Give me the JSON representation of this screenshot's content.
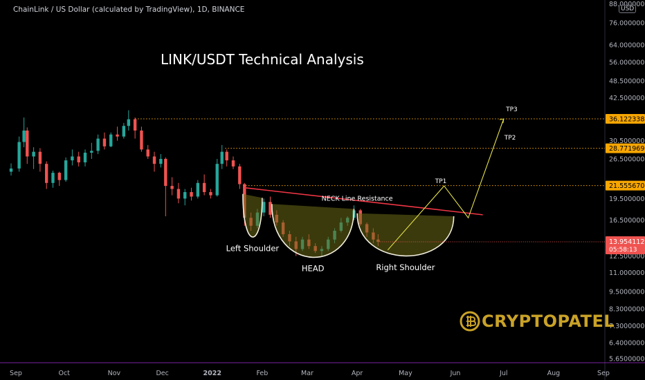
{
  "header": {
    "symbol_line": "ChainLink / US Dollar (calculated by TradingView), 1D, BINANCE",
    "currency_badge": "USD"
  },
  "title": "LINK/USDT Technical Analysis",
  "brand": {
    "name": "CRYPTOPATEL",
    "color": "#c9a227"
  },
  "colors": {
    "up": "#26a69a",
    "down": "#ef5350",
    "neckline": "#f23645",
    "target": "#e6e24a",
    "level": "#f7a600",
    "pattern_fill": "#6b6a16"
  },
  "chart_data": {
    "type": "candlestick",
    "x_axis": {
      "type": "date",
      "ticks": [
        {
          "label": "Sep",
          "date": "2021-09-01"
        },
        {
          "label": "Oct",
          "date": "2021-10-01"
        },
        {
          "label": "Nov",
          "date": "2021-11-01"
        },
        {
          "label": "Dec",
          "date": "2021-12-01"
        },
        {
          "label": "2022",
          "date": "2022-01-01",
          "bold": true
        },
        {
          "label": "Feb",
          "date": "2022-02-01"
        },
        {
          "label": "Mar",
          "date": "2022-03-01"
        },
        {
          "label": "Apr",
          "date": "2022-04-01"
        },
        {
          "label": "May",
          "date": "2022-05-01"
        },
        {
          "label": "Jun",
          "date": "2022-06-01"
        },
        {
          "label": "Jul",
          "date": "2022-07-01"
        },
        {
          "label": "Aug",
          "date": "2022-08-01"
        },
        {
          "label": "Sep",
          "date": "2022-09-01"
        }
      ]
    },
    "y_axis": {
      "scale": "log",
      "ticks": [
        "88.0000000",
        "76.0000000",
        "64.0000000",
        "56.0000000",
        "48.5000000",
        "42.5000000",
        "30.5000000",
        "26.5000000",
        "19.5000000",
        "16.5000000",
        "12.5000000",
        "11.0000000",
        "9.5000000",
        "8.3000000",
        "7.3000000",
        "6.4000000",
        "5.6500000"
      ]
    },
    "price_levels": [
      {
        "name": "TP3",
        "value": "36.1223380"
      },
      {
        "name": "TP2",
        "value": "28.7719695"
      },
      {
        "name": "TP1",
        "value": "21.5556702"
      }
    ],
    "current_price": {
      "value": "13.9541127",
      "countdown": "05:58:13"
    },
    "candles": [
      [
        "2021-08-29",
        24.0,
        25.6,
        23.3,
        24.6
      ],
      [
        "2021-09-03",
        24.6,
        31.5,
        24.0,
        30.2
      ],
      [
        "2021-09-06",
        30.2,
        36.5,
        29.0,
        33.0
      ],
      [
        "2021-09-08",
        33.0,
        33.8,
        25.5,
        27.0
      ],
      [
        "2021-09-12",
        27.0,
        29.0,
        24.5,
        28.0
      ],
      [
        "2021-09-16",
        28.0,
        28.8,
        24.0,
        25.5
      ],
      [
        "2021-09-20",
        25.5,
        26.0,
        21.0,
        22.0
      ],
      [
        "2021-09-24",
        22.0,
        24.2,
        21.2,
        23.8
      ],
      [
        "2021-09-28",
        23.8,
        24.0,
        21.5,
        22.5
      ],
      [
        "2021-10-02",
        22.5,
        26.8,
        22.2,
        26.2
      ],
      [
        "2021-10-06",
        26.2,
        28.5,
        25.2,
        27.0
      ],
      [
        "2021-10-10",
        27.0,
        28.0,
        25.0,
        25.8
      ],
      [
        "2021-10-14",
        25.8,
        28.5,
        25.0,
        27.8
      ],
      [
        "2021-10-18",
        27.8,
        30.0,
        26.5,
        28.2
      ],
      [
        "2021-10-22",
        28.2,
        32.0,
        27.5,
        31.0
      ],
      [
        "2021-10-26",
        31.0,
        32.5,
        28.5,
        29.2
      ],
      [
        "2021-10-30",
        29.2,
        32.5,
        29.0,
        32.0
      ],
      [
        "2021-11-03",
        32.0,
        34.0,
        30.5,
        31.5
      ],
      [
        "2021-11-07",
        31.5,
        35.0,
        31.0,
        34.2
      ],
      [
        "2021-11-10",
        34.2,
        38.6,
        33.0,
        36.0
      ],
      [
        "2021-11-14",
        36.0,
        36.5,
        31.0,
        33.0
      ],
      [
        "2021-11-18",
        33.0,
        34.0,
        28.0,
        28.5
      ],
      [
        "2021-11-22",
        28.5,
        29.5,
        26.5,
        27.0
      ],
      [
        "2021-11-26",
        27.0,
        28.0,
        24.0,
        25.5
      ],
      [
        "2021-11-30",
        25.5,
        27.5,
        24.8,
        26.5
      ],
      [
        "2021-12-03",
        26.5,
        26.8,
        17.0,
        21.5
      ],
      [
        "2021-12-07",
        21.5,
        23.0,
        20.0,
        21.0
      ],
      [
        "2021-12-11",
        21.0,
        22.0,
        18.8,
        19.5
      ],
      [
        "2021-12-15",
        19.5,
        21.0,
        18.5,
        20.5
      ],
      [
        "2021-12-19",
        20.5,
        21.2,
        19.2,
        19.8
      ],
      [
        "2021-12-23",
        19.8,
        22.5,
        19.5,
        22.0
      ],
      [
        "2021-12-27",
        22.0,
        23.5,
        20.0,
        20.5
      ],
      [
        "2021-12-31",
        20.5,
        21.0,
        19.5,
        20.0
      ],
      [
        "2022-01-04",
        20.0,
        26.5,
        19.8,
        25.5
      ],
      [
        "2022-01-07",
        25.5,
        29.5,
        24.5,
        28.0
      ],
      [
        "2022-01-10",
        28.0,
        28.5,
        25.0,
        26.2
      ],
      [
        "2022-01-14",
        26.2,
        27.0,
        24.5,
        25.0
      ],
      [
        "2022-01-18",
        25.0,
        25.5,
        21.0,
        21.8
      ],
      [
        "2022-01-21",
        21.8,
        22.0,
        15.8,
        16.8
      ],
      [
        "2022-01-25",
        16.8,
        17.5,
        15.2,
        15.8
      ],
      [
        "2022-01-29",
        15.8,
        18.0,
        15.5,
        17.5
      ],
      [
        "2022-02-02",
        17.5,
        19.5,
        17.0,
        19.0
      ],
      [
        "2022-02-06",
        19.0,
        19.8,
        16.8,
        17.2
      ],
      [
        "2022-02-10",
        17.2,
        17.8,
        15.8,
        16.2
      ],
      [
        "2022-02-14",
        16.2,
        16.5,
        14.5,
        14.8
      ],
      [
        "2022-02-18",
        14.8,
        15.2,
        13.5,
        14.0
      ],
      [
        "2022-02-22",
        14.0,
        14.5,
        12.5,
        13.2
      ],
      [
        "2022-02-26",
        13.2,
        14.5,
        13.0,
        14.2
      ],
      [
        "2022-03-02",
        14.2,
        14.8,
        13.2,
        13.5
      ],
      [
        "2022-03-06",
        13.5,
        13.8,
        12.8,
        13.0
      ],
      [
        "2022-03-10",
        13.0,
        13.5,
        12.4,
        13.2
      ],
      [
        "2022-03-14",
        13.2,
        14.5,
        13.0,
        14.2
      ],
      [
        "2022-03-18",
        14.2,
        15.5,
        13.8,
        15.2
      ],
      [
        "2022-03-22",
        15.2,
        16.8,
        15.0,
        16.2
      ],
      [
        "2022-03-26",
        16.2,
        17.0,
        15.8,
        16.8
      ],
      [
        "2022-03-30",
        16.8,
        18.5,
        16.5,
        17.8
      ],
      [
        "2022-04-03",
        17.8,
        18.0,
        15.8,
        16.0
      ],
      [
        "2022-04-07",
        16.0,
        16.2,
        14.5,
        15.0
      ],
      [
        "2022-04-11",
        15.0,
        15.5,
        13.8,
        14.2
      ],
      [
        "2022-04-14",
        14.2,
        14.8,
        13.5,
        13.95
      ]
    ],
    "pattern": {
      "name": "Inverse head and shoulders",
      "neckline": {
        "label": "NECK Line Resistance",
        "from": [
          "2022-01-21",
          21.2
        ],
        "to": [
          "2022-06-18",
          17.2
        ]
      },
      "shoulders_head": [
        {
          "label": "Left Shoulder",
          "from": [
            "2022-01-20",
            20.2
          ],
          "bottom": [
            "2022-01-26",
            14.6
          ],
          "to": [
            "2022-02-01",
            19.6
          ]
        },
        {
          "label": "HEAD",
          "from": [
            "2022-02-07",
            18.7
          ],
          "bottom": [
            "2022-03-04",
            12.5
          ],
          "to": [
            "2022-03-30",
            18.0
          ]
        },
        {
          "label": "Right Shoulder",
          "from": [
            "2022-04-01",
            17.4
          ],
          "bottom": [
            "2022-04-30",
            12.6
          ],
          "to": [
            "2022-05-31",
            17.0
          ]
        }
      ],
      "projection": [
        [
          "2022-04-20",
          13.1
        ],
        [
          "2022-05-25",
          21.5
        ],
        [
          "2022-06-09",
          16.8
        ],
        [
          "2022-07-01",
          36.1
        ]
      ],
      "targets": [
        {
          "label": "TP1",
          "date": "2022-05-23",
          "value": 22.0
        },
        {
          "label": "TP2",
          "date": "2022-07-05",
          "value": 30.8
        },
        {
          "label": "TP3",
          "date": "2022-07-06",
          "value": 38.3
        }
      ]
    }
  }
}
